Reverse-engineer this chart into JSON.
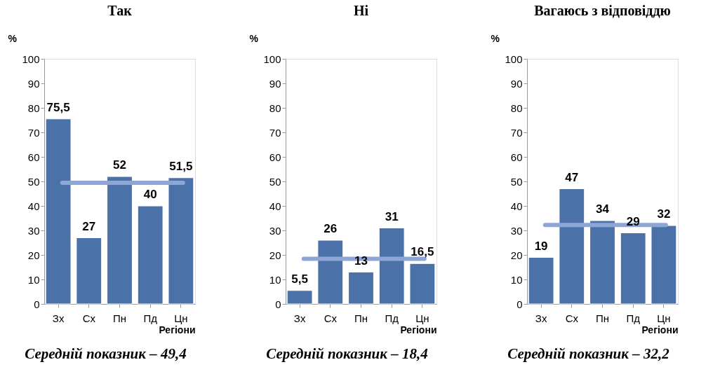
{
  "chart_data": [
    {
      "type": "bar",
      "title": "Так",
      "ylabel": "%",
      "xlabel": "Регіони",
      "categories": [
        "Зх",
        "Сх",
        "Пн",
        "Пд",
        "Цн"
      ],
      "values": [
        75.5,
        27,
        52,
        40,
        51.5
      ],
      "value_labels": [
        "75,5",
        "27",
        "52",
        "40",
        "51,5"
      ],
      "color": "#4a72a8",
      "ylim": [
        0,
        100
      ],
      "yticks": [
        0,
        10,
        20,
        30,
        40,
        50,
        60,
        70,
        80,
        90,
        100
      ],
      "ref_lines": [
        {
          "axis": "y",
          "value": 49.4,
          "color": "#8ea6d6"
        }
      ],
      "annotations": [
        "Середній показник – 49,4"
      ]
    },
    {
      "type": "bar",
      "title": "Ні",
      "ylabel": "%",
      "xlabel": "Регіони",
      "categories": [
        "Зх",
        "Сх",
        "Пн",
        "Пд",
        "Цн"
      ],
      "values": [
        5.5,
        26,
        13,
        31,
        16.5
      ],
      "value_labels": [
        "5,5",
        "26",
        "13",
        "31",
        "16,5"
      ],
      "color": "#4a72a8",
      "ylim": [
        0,
        100
      ],
      "yticks": [
        0,
        10,
        20,
        30,
        40,
        50,
        60,
        70,
        80,
        90,
        100
      ],
      "ref_lines": [
        {
          "axis": "y",
          "value": 18.4,
          "color": "#8ea6d6"
        }
      ],
      "annotations": [
        "Середній показник – 18,4"
      ]
    },
    {
      "type": "bar",
      "title": "Вагаюсь з відповіддю",
      "ylabel": "%",
      "xlabel": "Регіони",
      "categories": [
        "Зх",
        "Сх",
        "Пн",
        "Пд",
        "Цн"
      ],
      "values": [
        19,
        47,
        34,
        29,
        32
      ],
      "value_labels": [
        "19",
        "47",
        "34",
        "29",
        "32"
      ],
      "color": "#4a72a8",
      "ylim": [
        0,
        100
      ],
      "yticks": [
        0,
        10,
        20,
        30,
        40,
        50,
        60,
        70,
        80,
        90,
        100
      ],
      "ref_lines": [
        {
          "axis": "y",
          "value": 32.2,
          "color": "#8ea6d6"
        }
      ],
      "annotations": [
        "Середній показник – 32,2"
      ]
    }
  ]
}
